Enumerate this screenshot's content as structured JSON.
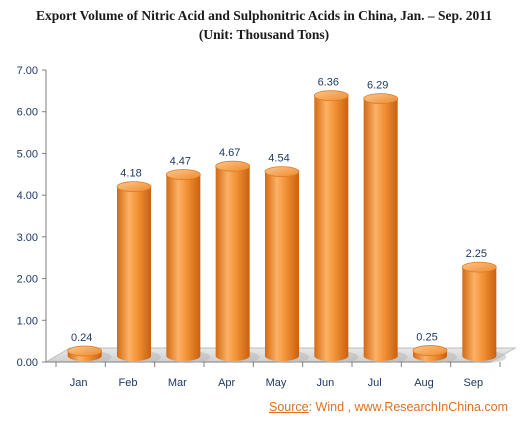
{
  "chart_data": {
    "type": "bar",
    "title": "Export Volume of Nitric Acid and Sulphonitric Acids in China, Jan. – Sep. 2011",
    "subtitle": "(Unit: Thousand Tons)",
    "categories": [
      "Jan",
      "Feb",
      "Mar",
      "Apr",
      "May",
      "Jun",
      "Jul",
      "Aug",
      "Sep"
    ],
    "values": [
      0.24,
      4.18,
      4.47,
      4.67,
      4.54,
      6.36,
      6.29,
      0.25,
      2.25
    ],
    "value_labels": [
      "0.24",
      "4.18",
      "4.47",
      "4.67",
      "4.54",
      "6.36",
      "6.29",
      "0.25",
      "2.25"
    ],
    "y_ticks": [
      "0.00",
      "1.00",
      "2.00",
      "3.00",
      "4.00",
      "5.00",
      "6.00",
      "7.00"
    ],
    "ylim": [
      0,
      7
    ],
    "xlabel": "",
    "ylabel": "",
    "grid": false,
    "legend": "none",
    "bar_color": "#f4953a",
    "bar_top_color": "#f7a95d"
  },
  "source": {
    "label": "Source",
    "text": ": Wind , www.ResearchInChina.com"
  }
}
